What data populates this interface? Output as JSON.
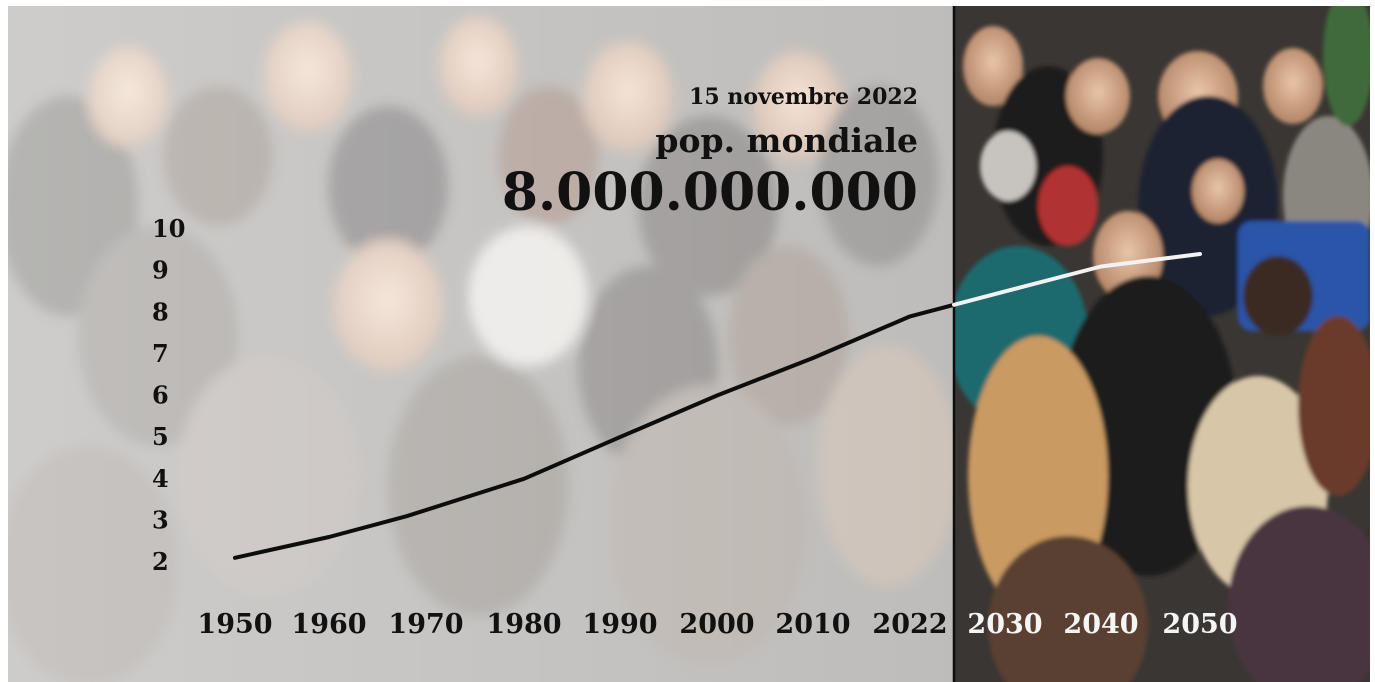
{
  "header": {
    "date": "15 novembre 2022",
    "label": "pop. mondiale",
    "big_number": "8.000.000.000"
  },
  "chart_data": {
    "type": "line",
    "title": "",
    "xlabel": "",
    "ylabel": "",
    "x_ticks": [
      "1950",
      "1960",
      "1970",
      "1980",
      "1990",
      "2000",
      "2010",
      "2022",
      "2030",
      "2040",
      "2050"
    ],
    "y_ticks": [
      "10",
      "9",
      "8",
      "7",
      "6",
      "5",
      "4",
      "3",
      "2"
    ],
    "ylim": [
      2,
      10
    ],
    "grid": false,
    "series": [
      {
        "x": [
          1950,
          1960,
          1968,
          1980,
          1990,
          2000,
          2010,
          2022,
          2030,
          2040,
          2050
        ],
        "values": [
          2.1,
          2.6,
          3.1,
          4.0,
          5.0,
          6.0,
          6.9,
          7.9,
          8.5,
          9.1,
          9.4
        ]
      }
    ],
    "colors": {
      "past_line": "#0d0d0d",
      "future_line": "#f2f2f2",
      "divider": "#0d0d0d"
    }
  }
}
